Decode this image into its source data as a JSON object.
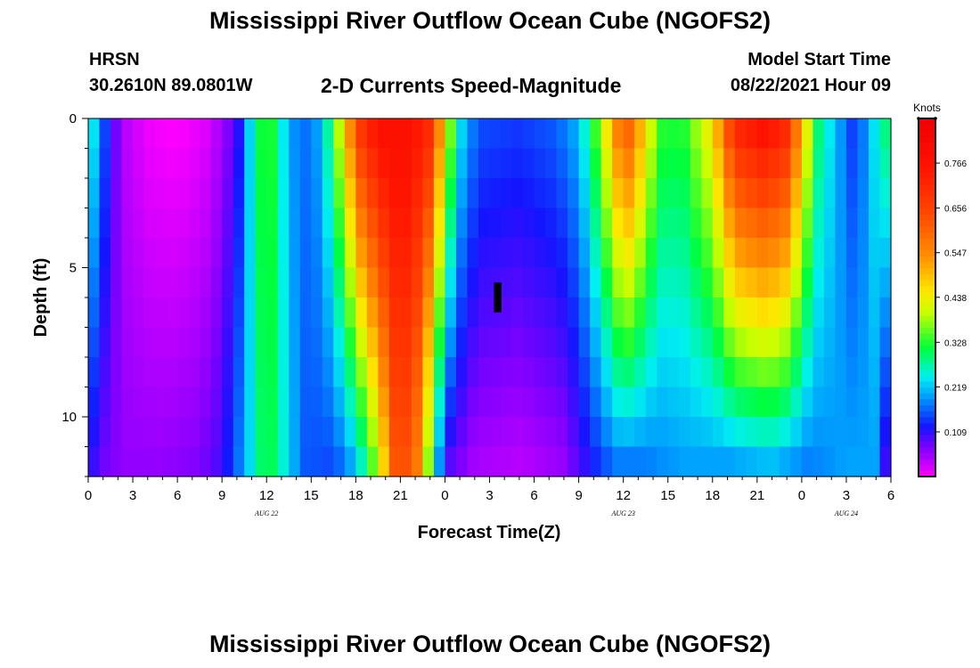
{
  "header": {
    "title": "Mississippi River Outflow Ocean Cube (NGOFS2)",
    "station": "HRSN",
    "coords": "30.2610N  89.0801W",
    "plot_title": "2-D Currents Speed-Magnitude",
    "model_start_label": "Model Start Time",
    "model_start_time": "08/22/2021 Hour 09"
  },
  "footer": {
    "title": "Mississippi River Outflow Ocean Cube (NGOFS2)"
  },
  "chart_data": {
    "type": "heatmap",
    "title": "2-D Currents Speed-Magnitude",
    "xlabel": "Forecast Time(Z)",
    "ylabel": "Depth (ft)",
    "x_range": [
      0,
      54
    ],
    "y_range": [
      0,
      12
    ],
    "x_ticks": [
      0,
      3,
      6,
      9,
      12,
      15,
      18,
      21,
      24,
      27,
      30,
      33,
      36,
      39,
      42,
      45,
      48,
      51,
      54
    ],
    "x_tick_labels": [
      "0",
      "3",
      "6",
      "9",
      "12",
      "15",
      "18",
      "21",
      "0",
      "3",
      "6",
      "9",
      "12",
      "15",
      "18",
      "21",
      "0",
      "3",
      "6"
    ],
    "date_labels": [
      {
        "text": "AUG  22",
        "x": 12
      },
      {
        "text": "AUG  23",
        "x": 36
      },
      {
        "text": "AUG  24",
        "x": 51
      }
    ],
    "y_ticks": [
      0,
      5,
      10
    ],
    "y_tick_labels": [
      "0",
      "5",
      "10"
    ],
    "colorbar": {
      "unit": "Knots",
      "min": 0.0,
      "max": 0.875,
      "tick_values": [
        0.766,
        0.656,
        0.547,
        0.438,
        0.328,
        0.219,
        0.109
      ],
      "tick_labels": [
        "0.766",
        "0.656",
        "0.547",
        "0.438",
        "0.328",
        "0.219",
        "0.109"
      ]
    },
    "depth_levels": [
      0.5,
      1.5,
      2.5,
      3.5,
      4.5,
      5.5,
      6.5,
      7.5,
      8.5,
      9.5,
      10.5,
      11.5
    ],
    "speed_profile_surface": [
      {
        "t": 0,
        "v": 0.28
      },
      {
        "t": 0.7,
        "v": 0.2
      },
      {
        "t": 1.5,
        "v": 0.1
      },
      {
        "t": 2.5,
        "v": 0.04
      },
      {
        "t": 4,
        "v": 0.01
      },
      {
        "t": 6,
        "v": 0.0
      },
      {
        "t": 8,
        "v": 0.02
      },
      {
        "t": 9.2,
        "v": 0.06
      },
      {
        "t": 10.2,
        "v": 0.12
      },
      {
        "t": 11,
        "v": 0.25
      },
      {
        "t": 12,
        "v": 0.36
      },
      {
        "t": 12.8,
        "v": 0.28
      },
      {
        "t": 13.5,
        "v": 0.2
      },
      {
        "t": 14.5,
        "v": 0.17
      },
      {
        "t": 15.5,
        "v": 0.2
      },
      {
        "t": 16.5,
        "v": 0.32
      },
      {
        "t": 17.5,
        "v": 0.52
      },
      {
        "t": 18.5,
        "v": 0.7
      },
      {
        "t": 20,
        "v": 0.78
      },
      {
        "t": 21.5,
        "v": 0.78
      },
      {
        "t": 23,
        "v": 0.7
      },
      {
        "t": 23.8,
        "v": 0.5
      },
      {
        "t": 24.5,
        "v": 0.33
      },
      {
        "t": 25.3,
        "v": 0.2
      },
      {
        "t": 26.5,
        "v": 0.15
      },
      {
        "t": 29,
        "v": 0.14
      },
      {
        "t": 31.5,
        "v": 0.16
      },
      {
        "t": 33,
        "v": 0.21
      },
      {
        "t": 34.5,
        "v": 0.38
      },
      {
        "t": 35.5,
        "v": 0.55
      },
      {
        "t": 36.5,
        "v": 0.6
      },
      {
        "t": 37.5,
        "v": 0.45
      },
      {
        "t": 38.5,
        "v": 0.33
      },
      {
        "t": 40,
        "v": 0.32
      },
      {
        "t": 42,
        "v": 0.45
      },
      {
        "t": 43.5,
        "v": 0.7
      },
      {
        "t": 45.5,
        "v": 0.76
      },
      {
        "t": 47,
        "v": 0.7
      },
      {
        "t": 48,
        "v": 0.5
      },
      {
        "t": 49,
        "v": 0.3
      },
      {
        "t": 50.5,
        "v": 0.2
      },
      {
        "t": 51.5,
        "v": 0.14
      },
      {
        "t": 52.5,
        "v": 0.2
      },
      {
        "t": 53.5,
        "v": 0.3
      },
      {
        "t": 54,
        "v": 0.25
      }
    ],
    "speed_profile_bottom": [
      {
        "t": 0,
        "v": 0.12
      },
      {
        "t": 1,
        "v": 0.08
      },
      {
        "t": 2.5,
        "v": 0.06
      },
      {
        "t": 5,
        "v": 0.06
      },
      {
        "t": 7.5,
        "v": 0.07
      },
      {
        "t": 9,
        "v": 0.1
      },
      {
        "t": 10.5,
        "v": 0.2
      },
      {
        "t": 12,
        "v": 0.33
      },
      {
        "t": 13.5,
        "v": 0.23
      },
      {
        "t": 14.5,
        "v": 0.16
      },
      {
        "t": 16.5,
        "v": 0.15
      },
      {
        "t": 18,
        "v": 0.22
      },
      {
        "t": 19.5,
        "v": 0.4
      },
      {
        "t": 20.8,
        "v": 0.66
      },
      {
        "t": 22,
        "v": 0.6
      },
      {
        "t": 23,
        "v": 0.35
      },
      {
        "t": 24,
        "v": 0.1
      },
      {
        "t": 26,
        "v": 0.05
      },
      {
        "t": 29,
        "v": 0.04
      },
      {
        "t": 32,
        "v": 0.06
      },
      {
        "t": 34,
        "v": 0.13
      },
      {
        "t": 35.5,
        "v": 0.18
      },
      {
        "t": 37.5,
        "v": 0.18
      },
      {
        "t": 40,
        "v": 0.2
      },
      {
        "t": 43,
        "v": 0.2
      },
      {
        "t": 46,
        "v": 0.22
      },
      {
        "t": 48.5,
        "v": 0.18
      },
      {
        "t": 51,
        "v": 0.2
      },
      {
        "t": 53,
        "v": 0.2
      },
      {
        "t": 54,
        "v": 0.05
      }
    ],
    "missing_cell": {
      "t_start": 27.3,
      "t_end": 27.8,
      "depth_start": 5.5,
      "depth_end": 6.5
    }
  }
}
